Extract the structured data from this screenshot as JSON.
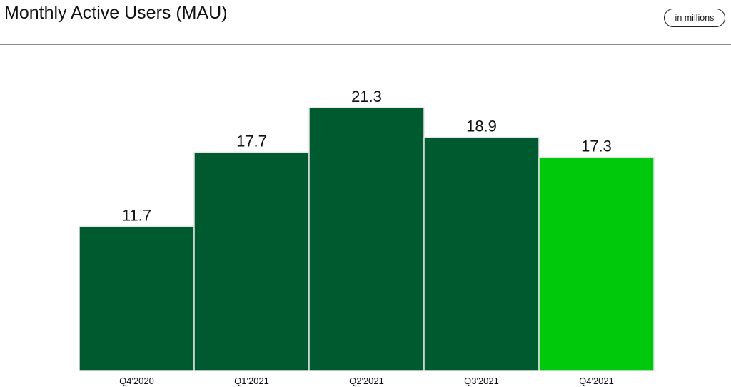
{
  "header": {
    "title": "Monthly Active Users (MAU)",
    "unit_badge": "in millions"
  },
  "colors": {
    "bar_default": "#005a30",
    "bar_highlight": "#00c80a",
    "bar_edge": "#e6e6e6",
    "axis": "#333333",
    "text": "#111111"
  },
  "chart_data": {
    "type": "bar",
    "title": "Monthly Active Users (MAU)",
    "xlabel": "",
    "ylabel": "",
    "categories": [
      "Q4'2020",
      "Q1'2021",
      "Q2'2021",
      "Q3'2021",
      "Q4'2021"
    ],
    "values": [
      11.7,
      17.7,
      21.3,
      18.9,
      17.3
    ],
    "data_labels": [
      "11.7",
      "17.7",
      "21.3",
      "18.9",
      "17.3"
    ],
    "highlight_index": 4,
    "ylim": [
      0,
      21.3
    ],
    "grid": false,
    "legend": "none"
  }
}
